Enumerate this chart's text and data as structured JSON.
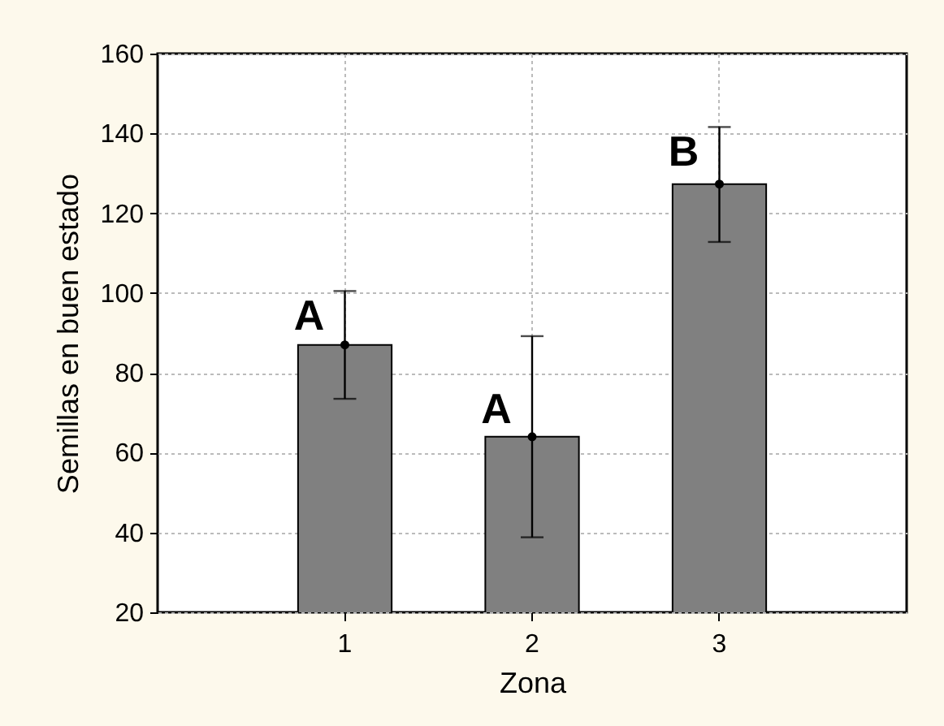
{
  "chart_data": {
    "type": "bar",
    "xlabel": "Zona",
    "ylabel": "Semillas en buen estado",
    "categories": [
      "1",
      "2",
      "3"
    ],
    "series": [
      {
        "color": "#808080",
        "values": [
          87,
          64,
          127.3
        ],
        "errors": [
          [
            73.5,
            100.5
          ],
          [
            38.8,
            89.2
          ],
          [
            112.8,
            141.6
          ]
        ]
      },
      {
        "type": "scatter",
        "color": "#000000",
        "marker": "circle",
        "x": [
          "1",
          "2",
          "3"
        ],
        "values": [
          87,
          64,
          127.3
        ]
      }
    ],
    "ylim": [
      20,
      160
    ],
    "yticks": [
      20,
      40,
      60,
      80,
      100,
      120,
      140,
      160
    ],
    "grid": true,
    "annotations": [
      {
        "text": "A",
        "x": "1",
        "y": 90.8
      },
      {
        "text": "A",
        "x": "2",
        "y": 67.4
      },
      {
        "text": "B",
        "x": "3",
        "y": 131.9
      }
    ]
  }
}
